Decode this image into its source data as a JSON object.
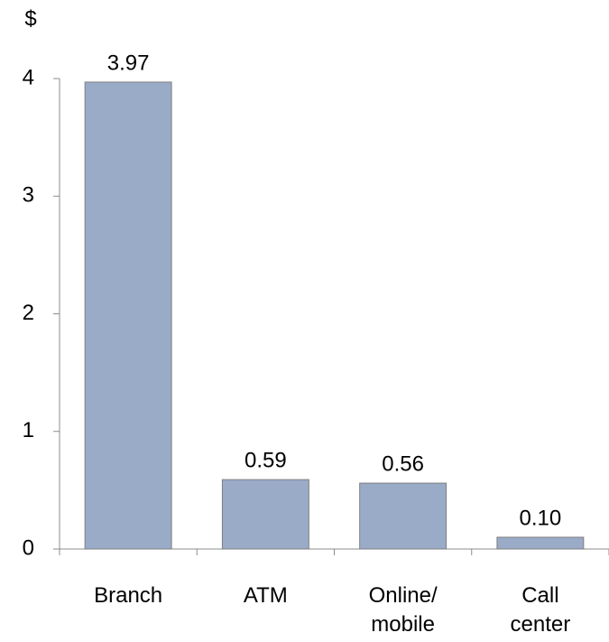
{
  "chart_data": {
    "type": "bar",
    "y_label": "$",
    "categories": [
      "Branch",
      "ATM",
      "Online/ mobile",
      "Call center"
    ],
    "values": [
      3.97,
      0.59,
      0.56,
      0.1
    ],
    "value_labels": [
      "3.97",
      "0.59",
      "0.56",
      "0.10"
    ],
    "color": "#9aabc8",
    "ylim": [
      0,
      4
    ],
    "yticks": [
      0,
      1,
      2,
      3,
      4
    ],
    "grid": false
  }
}
